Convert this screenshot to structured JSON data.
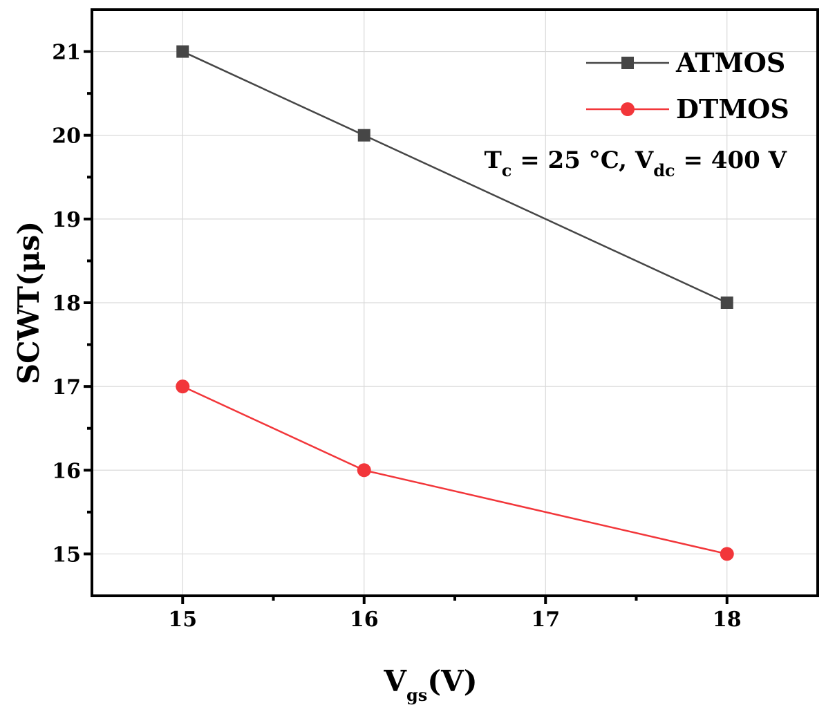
{
  "chart_data": {
    "type": "line",
    "title": "",
    "xlabel": {
      "main": "V",
      "sub": "gs",
      "rest": "(V)"
    },
    "ylabel": "SCWT(μs)",
    "x": [
      15,
      16,
      18
    ],
    "xlim": [
      14.5,
      18.5
    ],
    "ylim": [
      14.5,
      21.5
    ],
    "xticks": [
      15,
      16,
      17,
      18
    ],
    "yticks": [
      15,
      16,
      17,
      18,
      19,
      20,
      21
    ],
    "xtick_labels": [
      "15",
      "16",
      "17",
      "18"
    ],
    "ytick_labels": [
      "15",
      "16",
      "17",
      "18",
      "19",
      "20",
      "21"
    ],
    "grid": true,
    "legend_position": "top-right",
    "series": [
      {
        "name": "ATMOS",
        "values": [
          21,
          20,
          18
        ],
        "color": "#464646",
        "marker": "square"
      },
      {
        "name": "DTMOS",
        "values": [
          17,
          16,
          15
        ],
        "color": "#f2363a",
        "marker": "circle"
      }
    ],
    "annotation": {
      "t_main": "T",
      "t_sub": "c",
      "t_rest": " = 25 °C, ",
      "v_main": "V",
      "v_sub": "dc",
      "v_rest": " = 400 V"
    }
  }
}
